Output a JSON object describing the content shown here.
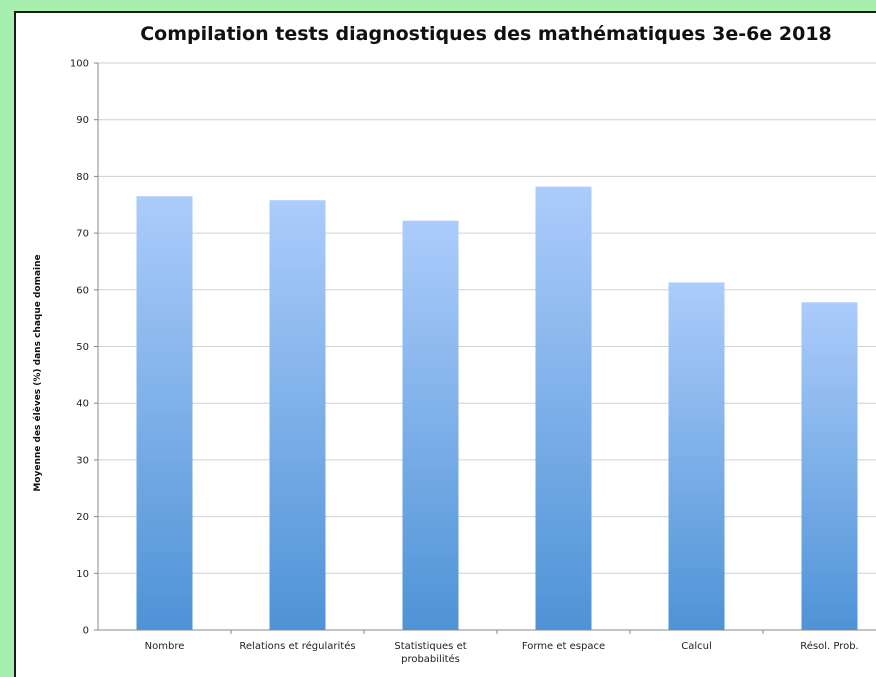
{
  "chart_data": {
    "type": "bar",
    "title": "Compilation tests diagnostiques des mathématiques 3e-6e 2018",
    "xlabel": "",
    "ylabel": "Moyenne des élèves (%) dans  chaque domaine",
    "categories": [
      [
        "Nombre"
      ],
      [
        "Relations et régularités"
      ],
      [
        "Statistiques et",
        "probabilités"
      ],
      [
        "Forme et espace"
      ],
      [
        "Calcul"
      ],
      [
        "Résol. Prob."
      ]
    ],
    "values": [
      76.5,
      75.8,
      72.2,
      78.2,
      61.3,
      57.8
    ],
    "ylim": [
      0,
      100
    ],
    "yticks": [
      0,
      10,
      20,
      30,
      40,
      50,
      60,
      70,
      80,
      90,
      100
    ],
    "grid": true,
    "legend": "none",
    "colors": {
      "bar_top": "#acccfb",
      "bar_bottom": "#4e93d6",
      "grid": "#d0d0d0",
      "axis": "#888888"
    }
  }
}
